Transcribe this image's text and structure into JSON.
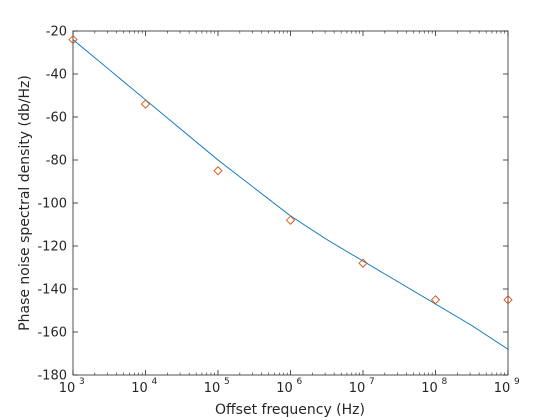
{
  "chart_data": {
    "type": "line",
    "xscale": "log",
    "xlabel": "Offset frequency (Hz)",
    "ylabel": "Phase noise spectral density (db/Hz)",
    "xlim": [
      1000,
      1000000000
    ],
    "ylim": [
      -180,
      -20
    ],
    "xticks": [
      {
        "base": "10",
        "exp": "3"
      },
      {
        "base": "10",
        "exp": "4"
      },
      {
        "base": "10",
        "exp": "5"
      },
      {
        "base": "10",
        "exp": "6"
      },
      {
        "base": "10",
        "exp": "7"
      },
      {
        "base": "10",
        "exp": "8"
      },
      {
        "base": "10",
        "exp": "9"
      }
    ],
    "yticks": [
      "-20",
      "-40",
      "-60",
      "-80",
      "-100",
      "-120",
      "-140",
      "-160",
      "-180"
    ],
    "grid": false,
    "series": [
      {
        "kind": "line",
        "color": "#0072BD",
        "x": [
          1000,
          3162,
          10000,
          31623,
          100000,
          316228,
          1000000,
          3162278,
          10000000,
          31622777,
          100000000,
          316227766,
          1000000000
        ],
        "y": [
          -24,
          -38,
          -52,
          -66,
          -80,
          -93,
          -106,
          -117,
          -127,
          -137,
          -147,
          -157,
          -168
        ]
      },
      {
        "kind": "markers",
        "marker": "diamond",
        "color": "#D95319",
        "x": [
          1000,
          10000,
          100000,
          1000000,
          10000000,
          100000000,
          1000000000
        ],
        "y": [
          -24,
          -54,
          -85,
          -108,
          -128,
          -145,
          -145
        ]
      }
    ]
  }
}
